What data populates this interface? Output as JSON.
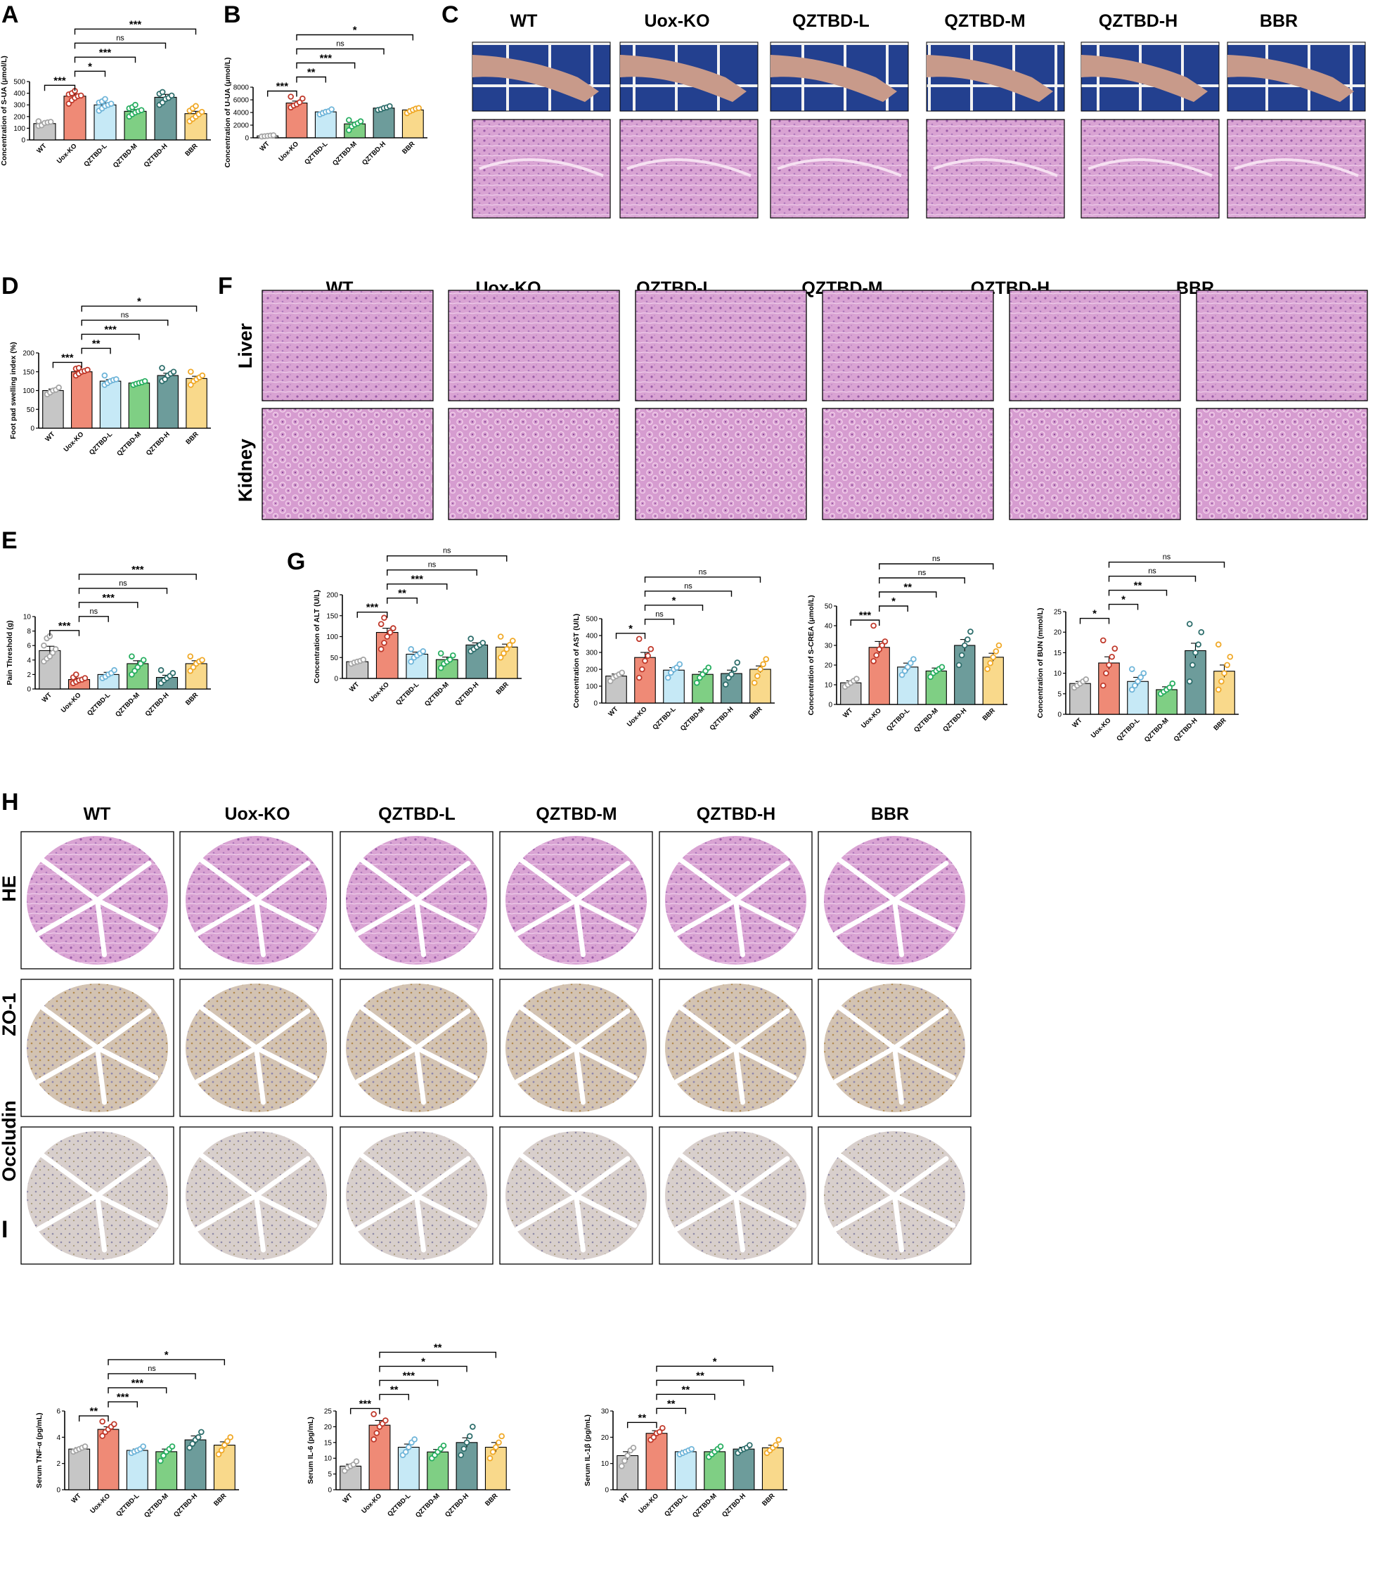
{
  "colors": {
    "WT": "#c6c6c6",
    "Uox-KO": "#ef8a76",
    "QZTBD-L": "#c6e9f6",
    "QZTBD-M": "#7fcf84",
    "QZTBD-H": "#6d9c9b",
    "BBR": "#f9d98b",
    "dotWT": "#a5a5a5",
    "dotUox-KO": "#c0392b",
    "dotQZTBD-L": "#6fb5d9",
    "dotQZTBD-M": "#27ae60",
    "dotQZTBD-H": "#2e6e6c",
    "dotBBR": "#f0a928",
    "he_tissue": "#d89fd2",
    "ihc_tissue": "#d9d2cf",
    "paw_bg": "#1e3a8a"
  },
  "panels": {
    "A": "A",
    "B": "B",
    "C": "C",
    "D": "D",
    "E": "E",
    "F": "F",
    "G": "G",
    "H": "H",
    "I": "I"
  },
  "groups": [
    "WT",
    "Uox-KO",
    "QZTBD-L",
    "QZTBD-M",
    "QZTBD-H",
    "BBR"
  ],
  "rows_F": [
    "Liver",
    "Kidney"
  ],
  "rows_H": [
    "HE",
    "ZO-1",
    "Occludin"
  ],
  "chart_data": [
    {
      "id": "A",
      "type": "bar",
      "categories": [
        "WT",
        "Uox-KO",
        "QZTBD-L",
        "QZTBD-M",
        "QZTBD-H",
        "BBR"
      ],
      "values": [
        140,
        375,
        300,
        245,
        365,
        225
      ],
      "errors": [
        10,
        20,
        18,
        15,
        25,
        20
      ],
      "points": [
        [
          120,
          125,
          145,
          150,
          155,
          160
        ],
        [
          310,
          340,
          360,
          375,
          380,
          390,
          400,
          420
        ],
        [
          250,
          270,
          290,
          300,
          310,
          320,
          330,
          350
        ],
        [
          200,
          220,
          235,
          245,
          255,
          270,
          280,
          300
        ],
        [
          300,
          320,
          350,
          360,
          380,
          395,
          410
        ],
        [
          160,
          180,
          200,
          220,
          240,
          250,
          270,
          290
        ]
      ],
      "ylabel": "Concentration of S-UA (μmol/L)",
      "ylim": [
        0,
        500
      ],
      "yticks": [
        0,
        100,
        200,
        300,
        400,
        500
      ],
      "brackets": [
        {
          "from": 0,
          "to": 1,
          "label": "***"
        },
        {
          "from": 1,
          "to": 2,
          "label": "*"
        },
        {
          "from": 1,
          "to": 3,
          "label": "***"
        },
        {
          "from": 1,
          "to": 4,
          "label": "ns"
        },
        {
          "from": 1,
          "to": 5,
          "label": "***"
        }
      ]
    },
    {
      "id": "B",
      "type": "bar",
      "categories": [
        "WT",
        "Uox-KO",
        "QZTBD-L",
        "QZTBD-M",
        "QZTBD-H",
        "BBR"
      ],
      "values": [
        300,
        5500,
        4100,
        2200,
        4700,
        4400
      ],
      "errors": [
        50,
        300,
        200,
        250,
        150,
        200
      ],
      "points": [
        [
          200,
          250,
          300,
          350,
          400
        ],
        [
          4800,
          5100,
          5300,
          5600,
          6200,
          6500
        ],
        [
          3700,
          3900,
          4100,
          4200,
          4500
        ],
        [
          1200,
          1800,
          2100,
          2300,
          2600,
          2800
        ],
        [
          4400,
          4500,
          4700,
          4800,
          5000
        ],
        [
          3900,
          4200,
          4400,
          4600,
          4700
        ]
      ],
      "ylabel": "Concentration of U-UA (μmol/L)",
      "ylim": [
        0,
        8000
      ],
      "yticks": [
        0,
        2000,
        4000,
        6000,
        8000
      ],
      "brackets": [
        {
          "from": 0,
          "to": 1,
          "label": "***"
        },
        {
          "from": 1,
          "to": 2,
          "label": "**"
        },
        {
          "from": 1,
          "to": 3,
          "label": "***"
        },
        {
          "from": 1,
          "to": 4,
          "label": "ns"
        },
        {
          "from": 1,
          "to": 5,
          "label": "*"
        }
      ]
    },
    {
      "id": "D",
      "type": "bar",
      "categories": [
        "WT",
        "Uox-KO",
        "QZTBD-L",
        "QZTBD-M",
        "QZTBD-H",
        "BBR"
      ],
      "values": [
        100,
        150,
        125,
        120,
        140,
        132
      ],
      "errors": [
        4,
        5,
        4,
        3,
        6,
        6
      ],
      "points": [
        [
          90,
          95,
          100,
          102,
          108
        ],
        [
          140,
          145,
          150,
          152,
          155,
          158,
          160
        ],
        [
          115,
          120,
          125,
          128,
          130,
          140
        ],
        [
          115,
          118,
          120,
          122,
          125
        ],
        [
          125,
          130,
          140,
          145,
          150,
          160
        ],
        [
          115,
          125,
          130,
          135,
          140,
          150
        ]
      ],
      "ylabel": "Foot pad swelling index (%)",
      "ylim": [
        0,
        200
      ],
      "yticks": [
        0,
        50,
        100,
        150,
        200
      ],
      "brackets": [
        {
          "from": 0,
          "to": 1,
          "label": "***"
        },
        {
          "from": 1,
          "to": 2,
          "label": "**"
        },
        {
          "from": 1,
          "to": 3,
          "label": "***"
        },
        {
          "from": 1,
          "to": 4,
          "label": "ns"
        },
        {
          "from": 1,
          "to": 5,
          "label": "*"
        }
      ]
    },
    {
      "id": "E",
      "type": "bar",
      "categories": [
        "WT",
        "Uox-KO",
        "QZTBD-L",
        "QZTBD-M",
        "QZTBD-H",
        "BBR"
      ],
      "values": [
        5.3,
        1.3,
        2.0,
        3.5,
        1.6,
        3.5
      ],
      "errors": [
        0.6,
        0.2,
        0.3,
        0.4,
        0.3,
        0.4
      ],
      "points": [
        [
          3.8,
          4.2,
          4.5,
          5.0,
          5.5,
          6.0,
          7.0,
          7.3
        ],
        [
          0.8,
          1.0,
          1.2,
          1.3,
          1.5,
          1.6,
          2.0
        ],
        [
          1.5,
          1.7,
          2.0,
          2.2,
          2.6
        ],
        [
          2.0,
          2.5,
          3.0,
          3.5,
          4.0,
          4.5
        ],
        [
          0.8,
          1.2,
          1.5,
          1.8,
          2.2,
          2.6
        ],
        [
          2.5,
          3.0,
          3.5,
          3.8,
          4.0,
          4.5
        ]
      ],
      "ylabel": "Pain Threshold (g)",
      "ylim": [
        0,
        10
      ],
      "yticks": [
        0,
        2,
        4,
        6,
        8,
        10
      ],
      "brackets": [
        {
          "from": 0,
          "to": 1,
          "label": "***"
        },
        {
          "from": 1,
          "to": 2,
          "label": "ns"
        },
        {
          "from": 1,
          "to": 3,
          "label": "***"
        },
        {
          "from": 1,
          "to": 4,
          "label": "ns"
        },
        {
          "from": 1,
          "to": 5,
          "label": "***"
        }
      ]
    },
    {
      "id": "G1",
      "type": "bar",
      "categories": [
        "WT",
        "Uox-KO",
        "QZTBD-L",
        "QZTBD-M",
        "QZTBD-H",
        "BBR"
      ],
      "values": [
        40,
        110,
        58,
        45,
        80,
        75
      ],
      "errors": [
        3,
        10,
        5,
        6,
        5,
        7
      ],
      "points": [
        [
          35,
          38,
          40,
          42,
          45
        ],
        [
          70,
          85,
          100,
          110,
          120,
          130,
          145
        ],
        [
          40,
          50,
          55,
          60,
          65,
          70
        ],
        [
          25,
          35,
          40,
          45,
          55,
          60
        ],
        [
          65,
          70,
          75,
          80,
          85,
          95
        ],
        [
          50,
          60,
          70,
          80,
          90,
          100
        ]
      ],
      "ylabel": "Concentration of ALT (U/L)",
      "ylim": [
        0,
        200
      ],
      "yticks": [
        0,
        50,
        100,
        150,
        200
      ],
      "brackets": [
        {
          "from": 0,
          "to": 1,
          "label": "***"
        },
        {
          "from": 1,
          "to": 2,
          "label": "**"
        },
        {
          "from": 1,
          "to": 3,
          "label": "***"
        },
        {
          "from": 1,
          "to": 4,
          "label": "ns"
        },
        {
          "from": 1,
          "to": 5,
          "label": "ns"
        }
      ]
    },
    {
      "id": "G2",
      "type": "bar",
      "categories": [
        "WT",
        "Uox-KO",
        "QZTBD-L",
        "QZTBD-M",
        "QZTBD-H",
        "BBR"
      ],
      "values": [
        160,
        270,
        195,
        170,
        175,
        200
      ],
      "errors": [
        12,
        30,
        15,
        15,
        20,
        20
      ],
      "points": [
        [
          130,
          150,
          160,
          170,
          180
        ],
        [
          150,
          200,
          250,
          280,
          320,
          380
        ],
        [
          150,
          180,
          200,
          210,
          230
        ],
        [
          120,
          150,
          170,
          190,
          210
        ],
        [
          110,
          150,
          170,
          200,
          240
        ],
        [
          120,
          160,
          200,
          230,
          260
        ]
      ],
      "ylabel": "Concentration of AST (U/L)",
      "ylim": [
        0,
        500
      ],
      "yticks": [
        0,
        100,
        200,
        300,
        400,
        500
      ],
      "brackets": [
        {
          "from": 0,
          "to": 1,
          "label": "*"
        },
        {
          "from": 1,
          "to": 2,
          "label": "ns"
        },
        {
          "from": 1,
          "to": 3,
          "label": "*"
        },
        {
          "from": 1,
          "to": 4,
          "label": "ns"
        },
        {
          "from": 1,
          "to": 5,
          "label": "ns"
        }
      ]
    },
    {
      "id": "G3",
      "type": "bar",
      "categories": [
        "WT",
        "Uox-KO",
        "QZTBD-L",
        "QZTBD-M",
        "QZTBD-H",
        "BBR"
      ],
      "values": [
        11,
        29,
        19,
        17,
        30,
        24
      ],
      "errors": [
        1,
        3,
        2,
        1.5,
        3,
        2
      ],
      "points": [
        [
          9,
          10,
          11,
          12,
          13
        ],
        [
          22,
          25,
          28,
          30,
          32,
          40
        ],
        [
          15,
          17,
          19,
          21,
          23
        ],
        [
          14,
          16,
          17,
          18,
          19
        ],
        [
          20,
          25,
          30,
          33,
          37
        ],
        [
          18,
          21,
          24,
          27,
          30
        ]
      ],
      "ylabel": "Concentration of S-CREA (μmol/L)",
      "ylim": [
        0,
        50
      ],
      "yticks": [
        0,
        10,
        20,
        30,
        40,
        50
      ],
      "brackets": [
        {
          "from": 0,
          "to": 1,
          "label": "***"
        },
        {
          "from": 1,
          "to": 2,
          "label": "*"
        },
        {
          "from": 1,
          "to": 3,
          "label": "**"
        },
        {
          "from": 1,
          "to": 4,
          "label": "ns"
        },
        {
          "from": 1,
          "to": 5,
          "label": "ns"
        }
      ]
    },
    {
      "id": "G4",
      "type": "bar",
      "categories": [
        "WT",
        "Uox-KO",
        "QZTBD-L",
        "QZTBD-M",
        "QZTBD-H",
        "BBR"
      ],
      "values": [
        7.5,
        12.5,
        8,
        6,
        15.5,
        10.5
      ],
      "errors": [
        0.5,
        1.5,
        1,
        0.7,
        1.8,
        1.5
      ],
      "points": [
        [
          6.5,
          7,
          7.5,
          8,
          8.5
        ],
        [
          7,
          10,
          12,
          14,
          16,
          18
        ],
        [
          6,
          7,
          8,
          9,
          10,
          11
        ],
        [
          5,
          5.5,
          6,
          6.5,
          7.5
        ],
        [
          8,
          12,
          15,
          17,
          20,
          22
        ],
        [
          6,
          8,
          10,
          12,
          14,
          17
        ]
      ],
      "ylabel": "Concentration of BUN (mmol/L)",
      "ylim": [
        0,
        25
      ],
      "yticks": [
        0,
        5,
        10,
        15,
        20,
        25
      ],
      "brackets": [
        {
          "from": 0,
          "to": 1,
          "label": "*"
        },
        {
          "from": 1,
          "to": 2,
          "label": "*"
        },
        {
          "from": 1,
          "to": 3,
          "label": "**"
        },
        {
          "from": 1,
          "to": 4,
          "label": "ns"
        },
        {
          "from": 1,
          "to": 5,
          "label": "ns"
        }
      ]
    },
    {
      "id": "I1",
      "type": "bar",
      "categories": [
        "WT",
        "Uox-KO",
        "QZTBD-L",
        "QZTBD-M",
        "QZTBD-H",
        "BBR"
      ],
      "values": [
        3.1,
        4.6,
        3.0,
        2.9,
        3.8,
        3.4
      ],
      "errors": [
        0.1,
        0.2,
        0.1,
        0.2,
        0.3,
        0.25
      ],
      "points": [
        [
          2.9,
          3.0,
          3.1,
          3.2,
          3.3
        ],
        [
          4.1,
          4.4,
          4.6,
          4.8,
          5.0,
          5.2
        ],
        [
          2.8,
          2.9,
          3.0,
          3.1,
          3.3
        ],
        [
          2.2,
          2.6,
          2.9,
          3.1,
          3.3
        ],
        [
          3.2,
          3.5,
          3.8,
          4.0,
          4.4
        ],
        [
          2.7,
          3.0,
          3.4,
          3.7,
          4.0
        ]
      ],
      "ylabel": "Serum TNF-α (pg/mL)",
      "ylim": [
        0,
        6
      ],
      "yticks": [
        0,
        2,
        4,
        6
      ],
      "brackets": [
        {
          "from": 0,
          "to": 1,
          "label": "**"
        },
        {
          "from": 1,
          "to": 2,
          "label": "***"
        },
        {
          "from": 1,
          "to": 3,
          "label": "***"
        },
        {
          "from": 1,
          "to": 4,
          "label": "ns"
        },
        {
          "from": 1,
          "to": 5,
          "label": "*"
        }
      ]
    },
    {
      "id": "I2",
      "type": "bar",
      "categories": [
        "WT",
        "Uox-KO",
        "QZTBD-L",
        "QZTBD-M",
        "QZTBD-H",
        "BBR"
      ],
      "values": [
        7.5,
        20.5,
        13.5,
        12,
        15,
        13.5
      ],
      "errors": [
        0.6,
        1.5,
        1,
        0.8,
        1.5,
        1.5
      ],
      "points": [
        [
          6,
          7,
          7.5,
          8,
          9
        ],
        [
          16,
          18,
          20,
          21,
          22,
          24
        ],
        [
          11,
          12,
          13.5,
          15,
          16
        ],
        [
          10,
          11,
          12,
          13,
          14
        ],
        [
          11,
          13,
          15,
          17,
          20
        ],
        [
          10,
          12,
          13.5,
          15,
          17
        ]
      ],
      "ylabel": "Serum IL-6 (pg/mL)",
      "ylim": [
        0,
        25
      ],
      "yticks": [
        0,
        5,
        10,
        15,
        20,
        25
      ],
      "brackets": [
        {
          "from": 0,
          "to": 1,
          "label": "***"
        },
        {
          "from": 1,
          "to": 2,
          "label": "**"
        },
        {
          "from": 1,
          "to": 3,
          "label": "***"
        },
        {
          "from": 1,
          "to": 4,
          "label": "*"
        },
        {
          "from": 1,
          "to": 5,
          "label": "**"
        }
      ]
    },
    {
      "id": "I3",
      "type": "bar",
      "categories": [
        "WT",
        "Uox-KO",
        "QZTBD-L",
        "QZTBD-M",
        "QZTBD-H",
        "BBR"
      ],
      "values": [
        13,
        21.5,
        14.5,
        14.5,
        15.5,
        16
      ],
      "errors": [
        1.5,
        1,
        0.5,
        0.7,
        0.7,
        1
      ],
      "points": [
        [
          9,
          11,
          13,
          15,
          16
        ],
        [
          19,
          20,
          21.5,
          22,
          23.5
        ],
        [
          13.5,
          14,
          14.5,
          15,
          15.5
        ],
        [
          12.5,
          13.5,
          14.5,
          15.5,
          16.5
        ],
        [
          14,
          15,
          15.5,
          16,
          17
        ],
        [
          14,
          15,
          16,
          17,
          19
        ]
      ],
      "ylabel": "Serum IL-1β (pg/mL)",
      "ylim": [
        0,
        30
      ],
      "yticks": [
        0,
        10,
        20,
        30
      ],
      "brackets": [
        {
          "from": 0,
          "to": 1,
          "label": "**"
        },
        {
          "from": 1,
          "to": 2,
          "label": "**"
        },
        {
          "from": 1,
          "to": 3,
          "label": "**"
        },
        {
          "from": 1,
          "to": 4,
          "label": "**"
        },
        {
          "from": 1,
          "to": 5,
          "label": "*"
        }
      ]
    }
  ]
}
